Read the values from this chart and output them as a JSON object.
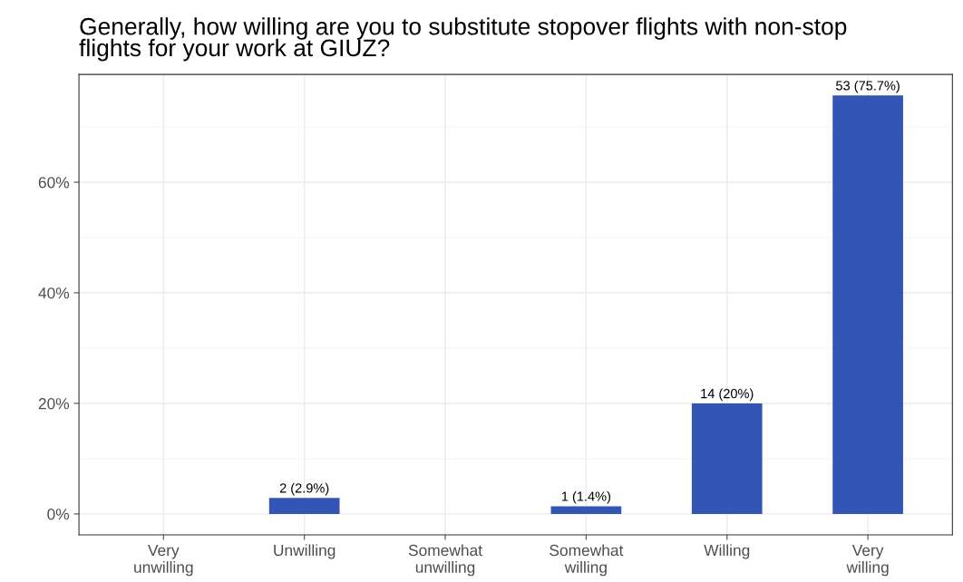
{
  "chart_data": {
    "type": "bar",
    "title": "Generally, how willing are you to substitute stopover flights with non-stop\nflights for your work at GIUZ?",
    "categories": [
      "Very\nunwilling",
      "Unwilling",
      "Somewhat\nunwilling",
      "Somewhat\nwilling",
      "Willing",
      "Very\nwilling"
    ],
    "values": [
      0,
      2.9,
      0,
      1.4,
      20,
      75.7
    ],
    "value_labels": [
      null,
      "2 (2.9%)",
      null,
      "1 (1.4%)",
      "14 (20%)",
      "53 (75.7%)"
    ],
    "color": "#3355b5",
    "ylim": [
      -3.785,
      79.485
    ],
    "yticks": [
      {
        "value": 0,
        "label": "0%"
      },
      {
        "value": 20,
        "label": "20%"
      },
      {
        "value": 40,
        "label": "40%"
      },
      {
        "value": 60,
        "label": "60%"
      }
    ],
    "grid": true
  }
}
